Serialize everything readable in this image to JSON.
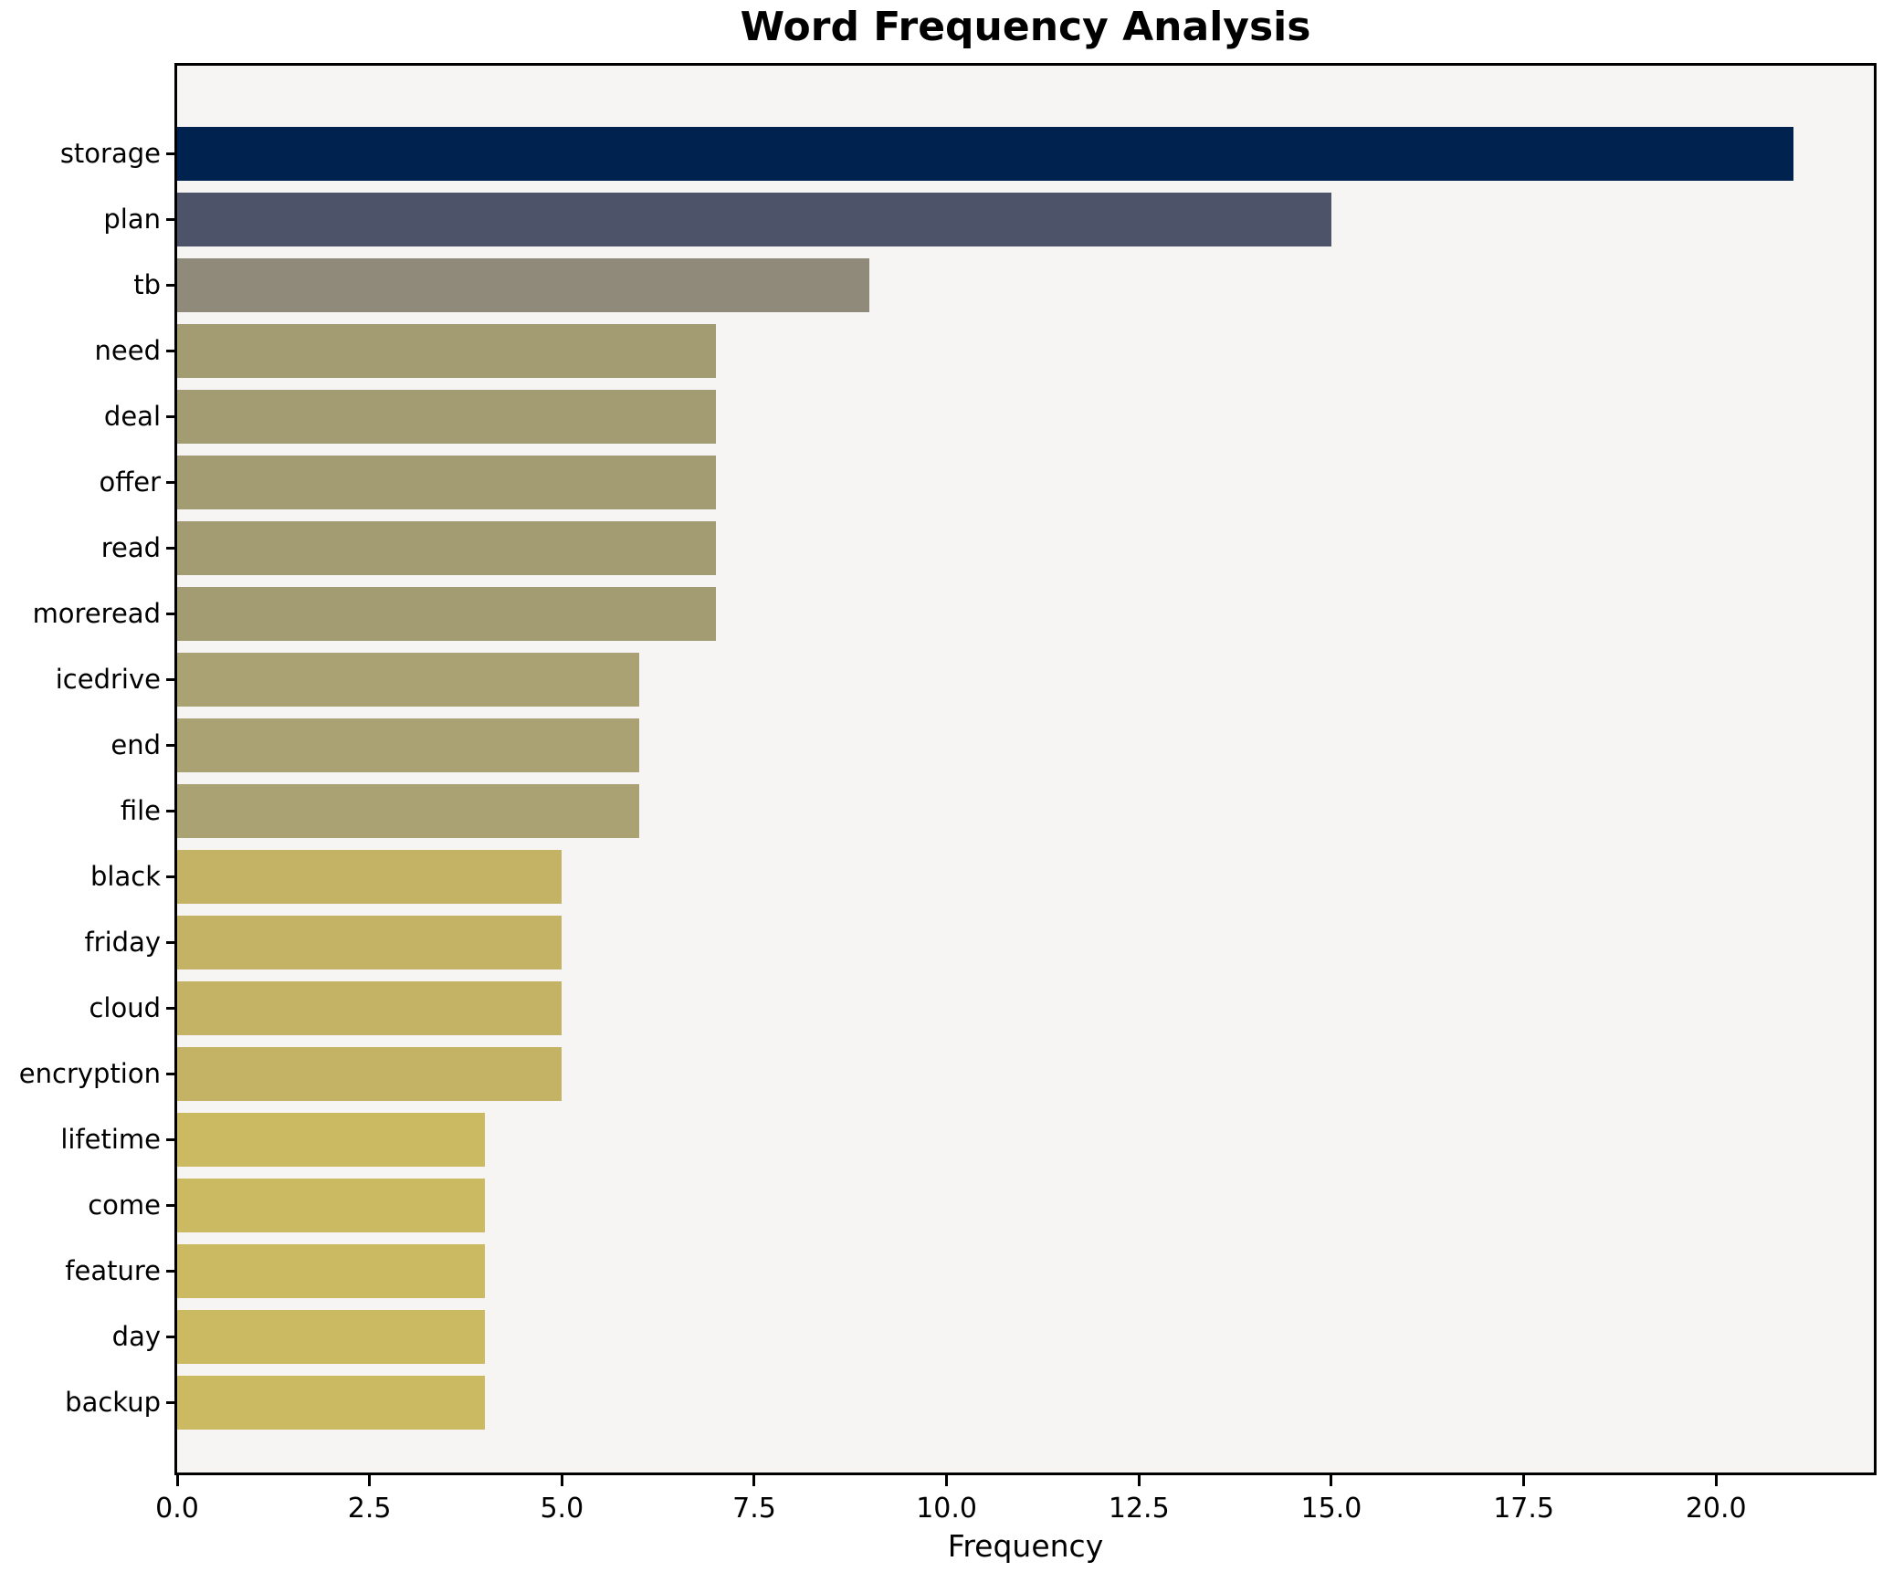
{
  "chart_data": {
    "type": "bar",
    "orientation": "horizontal",
    "title": "Word Frequency Analysis",
    "xlabel": "Frequency",
    "ylabel": "",
    "categories": [
      "storage",
      "plan",
      "tb",
      "need",
      "deal",
      "offer",
      "read",
      "moreread",
      "icedrive",
      "end",
      "file",
      "black",
      "friday",
      "cloud",
      "encryption",
      "lifetime",
      "come",
      "feature",
      "day",
      "backup"
    ],
    "values": [
      21,
      15,
      9,
      7,
      7,
      7,
      7,
      7,
      6,
      6,
      6,
      5,
      5,
      5,
      5,
      4,
      4,
      4,
      4,
      4
    ],
    "bar_colors": [
      "#00224e",
      "#4d5368",
      "#8f8a79",
      "#a39b72",
      "#a39b72",
      "#a39b72",
      "#a39b72",
      "#a39b72",
      "#aaa272",
      "#aaa272",
      "#aaa272",
      "#c5b365",
      "#c5b365",
      "#c5b365",
      "#c5b365",
      "#ccba62",
      "#ccba62",
      "#ccba62",
      "#ccba62",
      "#ccba62"
    ],
    "xlim": [
      0,
      22.05
    ],
    "x_ticks": [
      0,
      2.5,
      5,
      7.5,
      10,
      12.5,
      15,
      17.5,
      20
    ],
    "x_tick_labels": [
      "0.0",
      "2.5",
      "5.0",
      "7.5",
      "10.0",
      "12.5",
      "15.0",
      "17.5",
      "20.0"
    ],
    "grid": false,
    "legend": null,
    "plot_background": "#f6f5f3",
    "spine_color": "#000000"
  }
}
